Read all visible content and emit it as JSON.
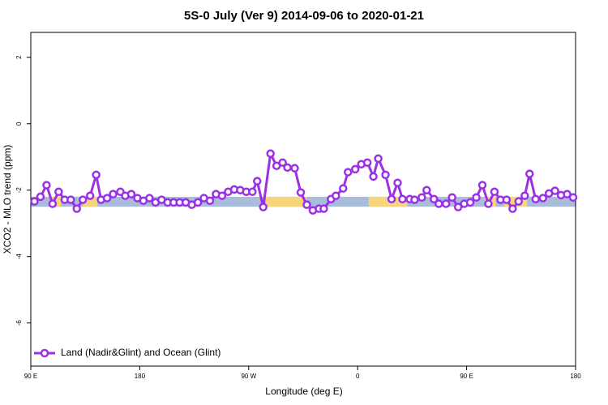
{
  "chart_data": {
    "type": "line",
    "title": "5S-0 July (Ver 9)   2014-09-06 to 2020-01-21",
    "xlabel": "Longitude (deg E)",
    "ylabel": "XCO2 - MLO trend (ppm)",
    "xlim": [
      90,
      540
    ],
    "ylim": [
      -7.3,
      2.75
    ],
    "xticks": [
      {
        "value": 90,
        "label": "90 E"
      },
      180,
      {
        "value": 270,
        "label": "90 W"
      },
      {
        "value": 360,
        "label": "0"
      },
      {
        "value": 450,
        "label": "90 E"
      },
      {
        "value": 540,
        "label": "180"
      }
    ],
    "yticks": [
      -6,
      -4,
      -2,
      0,
      2
    ],
    "band_range": [
      -2.5,
      -2.2
    ],
    "band_color": "#a9bcd9",
    "land_color": "#f5d67c",
    "land_segments": [
      [
        106,
        115
      ],
      [
        133,
        145
      ],
      [
        284,
        318
      ],
      [
        369,
        401
      ],
      [
        465,
        474
      ],
      [
        481,
        500
      ]
    ],
    "legend": "bottom-left",
    "series": [
      {
        "name": "Land (Nadir&Glint) and Ocean (Glint)",
        "color": "#9b30e6",
        "x": [
          93,
          98,
          103,
          108,
          113,
          118,
          123,
          128,
          133,
          139,
          144,
          148,
          153,
          158,
          164,
          168,
          173,
          178,
          183,
          188,
          193,
          198,
          203,
          208,
          213,
          218,
          223,
          228,
          233,
          238,
          243,
          248,
          253,
          258,
          263,
          268,
          273,
          277,
          282,
          288,
          293,
          298,
          302,
          308,
          313,
          318,
          323,
          328,
          332,
          338,
          342,
          348,
          352,
          358,
          363,
          368,
          373,
          377,
          383,
          388,
          393,
          397,
          403,
          407,
          413,
          417,
          423,
          427,
          433,
          438,
          443,
          448,
          453,
          458,
          463,
          468,
          473,
          478,
          483,
          488,
          493,
          498,
          502,
          507,
          513,
          518,
          523,
          528,
          533,
          538
        ],
        "values": [
          -2.34,
          -2.2,
          -1.85,
          -2.41,
          -2.05,
          -2.29,
          -2.29,
          -2.56,
          -2.29,
          -2.17,
          -1.54,
          -2.29,
          -2.24,
          -2.12,
          -2.05,
          -2.17,
          -2.12,
          -2.24,
          -2.32,
          -2.24,
          -2.37,
          -2.29,
          -2.37,
          -2.37,
          -2.37,
          -2.37,
          -2.44,
          -2.37,
          -2.24,
          -2.32,
          -2.12,
          -2.17,
          -2.05,
          -1.98,
          -2.0,
          -2.05,
          -2.05,
          -1.73,
          -2.51,
          -0.9,
          -1.27,
          -1.17,
          -1.32,
          -1.34,
          -2.07,
          -2.44,
          -2.61,
          -2.56,
          -2.56,
          -2.27,
          -2.17,
          -1.95,
          -1.46,
          -1.37,
          -1.22,
          -1.17,
          -1.59,
          -1.05,
          -1.54,
          -2.27,
          -1.78,
          -2.27,
          -2.27,
          -2.29,
          -2.22,
          -2.0,
          -2.27,
          -2.41,
          -2.41,
          -2.22,
          -2.51,
          -2.41,
          -2.37,
          -2.22,
          -1.85,
          -2.41,
          -2.05,
          -2.29,
          -2.29,
          -2.56,
          -2.34,
          -2.17,
          -1.51,
          -2.27,
          -2.24,
          -2.1,
          -2.02,
          -2.15,
          -2.12,
          -2.22
        ]
      }
    ]
  }
}
